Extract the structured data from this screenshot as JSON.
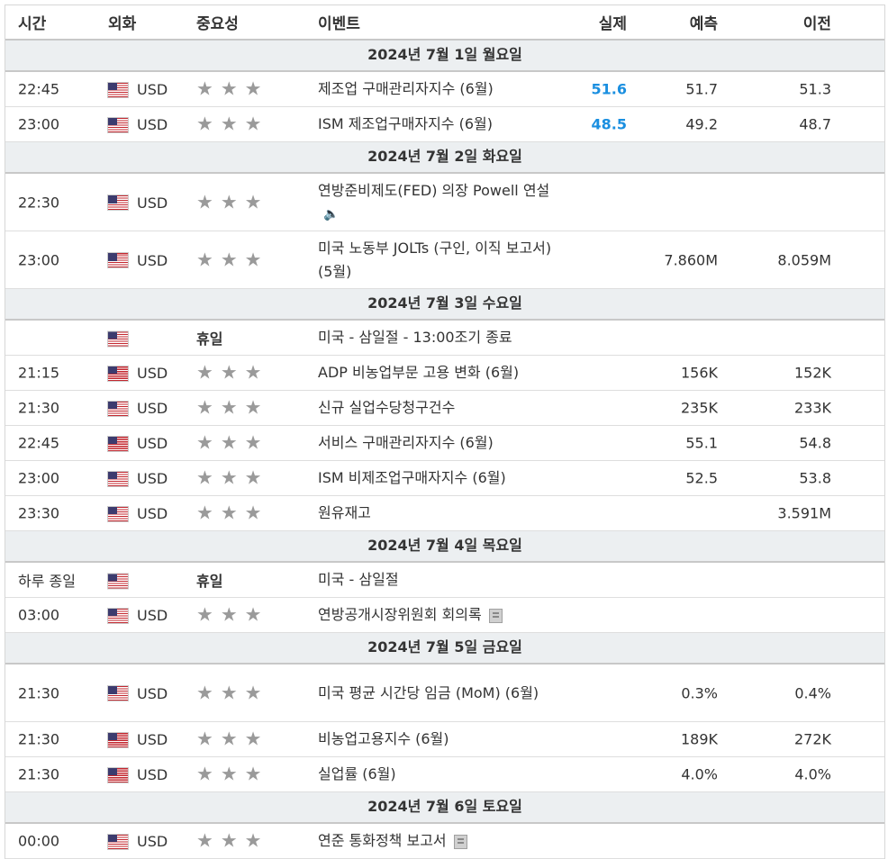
{
  "header": {
    "time": "시간",
    "currency": "외화",
    "importance": "중요성",
    "event": "이벤트",
    "actual": "실제",
    "forecast": "예측",
    "previous": "이전"
  },
  "colors": {
    "actual_blue": "#1a8fe0",
    "star_grey": "#9a9a9a",
    "date_bg": "#eceff1"
  },
  "days": [
    {
      "date": "2024년 7월 1일 월요일",
      "events": [
        {
          "time": "22:45",
          "currency": "USD",
          "importance": 3,
          "event": "제조업 구매관리자지수 (6월)",
          "actual": "51.6",
          "forecast": "51.7",
          "previous": "51.3"
        },
        {
          "time": "23:00",
          "currency": "USD",
          "importance": 3,
          "event": "ISM 제조업구매자지수 (6월)",
          "actual": "48.5",
          "forecast": "49.2",
          "previous": "48.7"
        }
      ]
    },
    {
      "date": "2024년 7월 2일 화요일",
      "events": [
        {
          "time": "22:30",
          "currency": "USD",
          "importance": 3,
          "event": "연방준비제도(FED) 의장 Powell 연설",
          "icon": "speaker-icon",
          "actual": "",
          "forecast": "",
          "previous": "",
          "tall": true
        },
        {
          "time": "23:00",
          "currency": "USD",
          "importance": 3,
          "event": "미국 노동부 JOLTs (구인, 이직 보고서) (5월)",
          "actual": "",
          "forecast": "7.860M",
          "previous": "8.059M",
          "tall": true
        }
      ]
    },
    {
      "date": "2024년 7월 3일 수요일",
      "events": [
        {
          "time": "",
          "currency": "",
          "holiday": "휴일",
          "event": "미국 - 삼일절 - 13:00조기 종료",
          "actual": "",
          "forecast": "",
          "previous": ""
        },
        {
          "time": "21:15",
          "currency": "USD",
          "importance": 3,
          "event": "ADP 비농업부문 고용 변화 (6월)",
          "actual": "",
          "forecast": "156K",
          "previous": "152K"
        },
        {
          "time": "21:30",
          "currency": "USD",
          "importance": 3,
          "event": "신규 실업수당청구건수",
          "actual": "",
          "forecast": "235K",
          "previous": "233K"
        },
        {
          "time": "22:45",
          "currency": "USD",
          "importance": 3,
          "event": "서비스 구매관리자지수 (6월)",
          "actual": "",
          "forecast": "55.1",
          "previous": "54.8"
        },
        {
          "time": "23:00",
          "currency": "USD",
          "importance": 3,
          "event": "ISM 비제조업구매자지수 (6월)",
          "actual": "",
          "forecast": "52.5",
          "previous": "53.8"
        },
        {
          "time": "23:30",
          "currency": "USD",
          "importance": 3,
          "event": "원유재고",
          "actual": "",
          "forecast": "",
          "previous": "3.591M"
        }
      ]
    },
    {
      "date": "2024년 7월 4일 목요일",
      "events": [
        {
          "time": "하루 종일",
          "currency": "",
          "holiday": "휴일",
          "event": "미국 - 삼일절",
          "actual": "",
          "forecast": "",
          "previous": ""
        },
        {
          "time": "03:00",
          "currency": "USD",
          "importance": 3,
          "event": "연방공개시장위원회 회의록",
          "icon": "document-icon",
          "actual": "",
          "forecast": "",
          "previous": ""
        }
      ]
    },
    {
      "date": "2024년 7월 5일 금요일",
      "events": [
        {
          "time": "21:30",
          "currency": "USD",
          "importance": 3,
          "event": "미국 평균 시간당 임금 (MoM) (6월)",
          "actual": "",
          "forecast": "0.3%",
          "previous": "0.4%",
          "tall": true
        },
        {
          "time": "21:30",
          "currency": "USD",
          "importance": 3,
          "event": "비농업고용지수 (6월)",
          "actual": "",
          "forecast": "189K",
          "previous": "272K"
        },
        {
          "time": "21:30",
          "currency": "USD",
          "importance": 3,
          "event": "실업률 (6월)",
          "actual": "",
          "forecast": "4.0%",
          "previous": "4.0%"
        }
      ]
    },
    {
      "date": "2024년 7월 6일 토요일",
      "events": [
        {
          "time": "00:00",
          "currency": "USD",
          "importance": 3,
          "event": "연준 통화정책 보고서",
          "icon": "document-icon",
          "actual": "",
          "forecast": "",
          "previous": ""
        }
      ]
    }
  ]
}
